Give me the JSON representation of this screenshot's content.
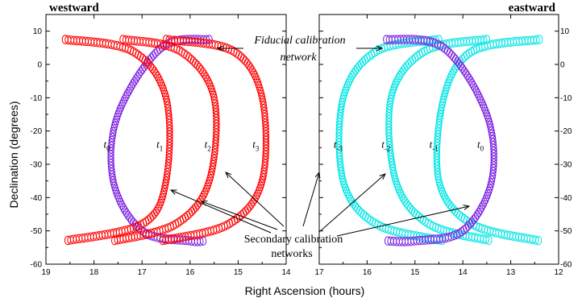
{
  "chart_data": [
    {
      "type": "scatter",
      "panel": "westward",
      "title": "westward",
      "xlabel": "Right Ascension (hours)",
      "ylabel": "Declination (degrees)",
      "xlim": [
        19,
        14
      ],
      "ylim": [
        -60,
        15
      ],
      "xticks": [
        19,
        18,
        17,
        16,
        15,
        14
      ],
      "yticks": [
        10,
        0,
        -10,
        -20,
        -30,
        -40,
        -50,
        -60
      ],
      "series": [
        {
          "label": "t",
          "sub": "0",
          "color": "#7b1fe0",
          "label_pos": [
            17.8,
            -25
          ],
          "x": [
            15.6,
            16.6,
            17.5,
            17.6,
            17.0,
            16.0,
            15.7
          ],
          "y": [
            7.5,
            5,
            -15,
            -35,
            -50,
            -53,
            -53
          ]
        },
        {
          "label": "t",
          "sub": "1",
          "color": "#ff0000",
          "label_pos": [
            16.7,
            -25
          ],
          "x": [
            18.6,
            17.2,
            16.5,
            16.5,
            17.0,
            18.6
          ],
          "y": [
            7.5,
            4,
            -10,
            -35,
            -48,
            -53
          ]
        },
        {
          "label": "t",
          "sub": "2",
          "color": "#ff0000",
          "label_pos": [
            15.7,
            -25
          ],
          "x": [
            17.4,
            16.2,
            15.5,
            15.6,
            16.3,
            17.6
          ],
          "y": [
            7.5,
            4,
            -10,
            -35,
            -48,
            -53
          ]
        },
        {
          "label": "t",
          "sub": "3",
          "color": "#ff0000",
          "label_pos": [
            14.7,
            -25
          ],
          "x": [
            16.5,
            15.1,
            14.5,
            14.5,
            15.2,
            16.6
          ],
          "y": [
            7.5,
            4,
            -10,
            -35,
            -48,
            -53
          ]
        }
      ]
    },
    {
      "type": "scatter",
      "panel": "eastward",
      "title": "eastward",
      "xlim": [
        17,
        12
      ],
      "ylim": [
        -60,
        15
      ],
      "xticks": [
        17,
        16,
        15,
        14,
        13,
        12
      ],
      "yticks": [
        10,
        0,
        -10,
        -20,
        -30,
        -40,
        -50,
        -60
      ],
      "series": [
        {
          "label": "t",
          "sub": "-3",
          "color": "#00e5e5",
          "label_pos": [
            16.7,
            -25
          ],
          "x": [
            14.5,
            15.8,
            16.5,
            16.5,
            15.8,
            14.4
          ],
          "y": [
            7.5,
            4,
            -10,
            -35,
            -48,
            -53
          ]
        },
        {
          "label": "t",
          "sub": "-2",
          "color": "#00e5e5",
          "label_pos": [
            15.7,
            -25
          ],
          "x": [
            13.5,
            14.8,
            15.5,
            15.4,
            14.7,
            13.4
          ],
          "y": [
            7.5,
            4,
            -10,
            -35,
            -48,
            -53
          ]
        },
        {
          "label": "t",
          "sub": "-1",
          "color": "#00e5e5",
          "label_pos": [
            14.7,
            -25
          ],
          "x": [
            12.4,
            13.8,
            14.4,
            14.5,
            13.8,
            12.4
          ],
          "y": [
            7.5,
            4,
            -10,
            -35,
            -48,
            -53
          ]
        },
        {
          "label": "t",
          "sub": "0",
          "color": "#7b1fe0",
          "label_pos": [
            13.7,
            -25
          ],
          "x": [
            15.6,
            14.4,
            13.5,
            13.4,
            14.0,
            15.0,
            15.6
          ],
          "y": [
            7.5,
            5,
            -15,
            -35,
            -50,
            -53,
            -53
          ]
        }
      ]
    }
  ],
  "annotations": {
    "fiducial_line1": "Fiducial calibration",
    "fiducial_line2": "network",
    "secondary_line1": "Secondary calibration",
    "secondary_line2": "networks"
  },
  "colors": {
    "red": "#ff0000",
    "cyan": "#00e5e5",
    "violet": "#7b1fe0"
  }
}
